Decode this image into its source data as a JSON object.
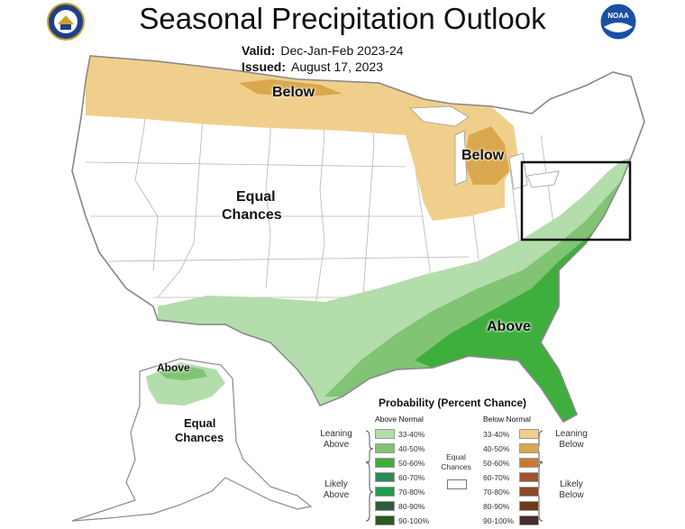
{
  "header": {
    "title": "Seasonal Precipitation Outlook",
    "valid_label": "Valid:",
    "valid_value": "Dec-Jan-Feb 2023-24",
    "issued_label": "Issued:",
    "issued_value": "August 17, 2023",
    "noaa_logo_text": "NOAA"
  },
  "map": {
    "labels": {
      "below_north": "Below",
      "below_michigan": "Below",
      "equal_chances_west_1": "Equal",
      "equal_chances_west_2": "Chances",
      "above_southeast": "Above",
      "above_alaska": "Above",
      "equal_chances_alaska_1": "Equal",
      "equal_chances_alaska_2": "Chances"
    },
    "colors": {
      "below_33_40": "#F0CF8C",
      "below_40_50": "#D9A84E",
      "above_33_40": "#B3DDAA",
      "above_40_50": "#80C474",
      "above_50_60": "#3EAE3C",
      "land": "#ffffff",
      "border": "#9a9a9a"
    }
  },
  "legend": {
    "title": "Probability (Percent Chance)",
    "above_header": "Above Normal",
    "below_header": "Below Normal",
    "leaning_above": [
      "Leaning",
      "Above"
    ],
    "likely_above": [
      "Likely",
      "Above"
    ],
    "leaning_below": [
      "Leaning",
      "Below"
    ],
    "likely_below": [
      "Likely",
      "Below"
    ],
    "equal_chances": [
      "Equal",
      "Chances"
    ],
    "above_items": [
      {
        "label": "33-40%",
        "color": "#B3DDAA"
      },
      {
        "label": "40-50%",
        "color": "#80C474"
      },
      {
        "label": "50-60%",
        "color": "#3EAE3C"
      },
      {
        "label": "60-70%",
        "color": "#2E8B57"
      },
      {
        "label": "70-80%",
        "color": "#1E9E4A"
      },
      {
        "label": "80-90%",
        "color": "#2E5E3A"
      },
      {
        "label": "90-100%",
        "color": "#2A5A1F"
      }
    ],
    "below_items": [
      {
        "label": "33-40%",
        "color": "#F0CF8C"
      },
      {
        "label": "40-50%",
        "color": "#D9A84E"
      },
      {
        "label": "50-60%",
        "color": "#C87A33"
      },
      {
        "label": "60-70%",
        "color": "#A0522D"
      },
      {
        "label": "70-80%",
        "color": "#8B4A2B"
      },
      {
        "label": "80-90%",
        "color": "#6E3A1A"
      },
      {
        "label": "90-100%",
        "color": "#4A2A2A"
      }
    ]
  }
}
